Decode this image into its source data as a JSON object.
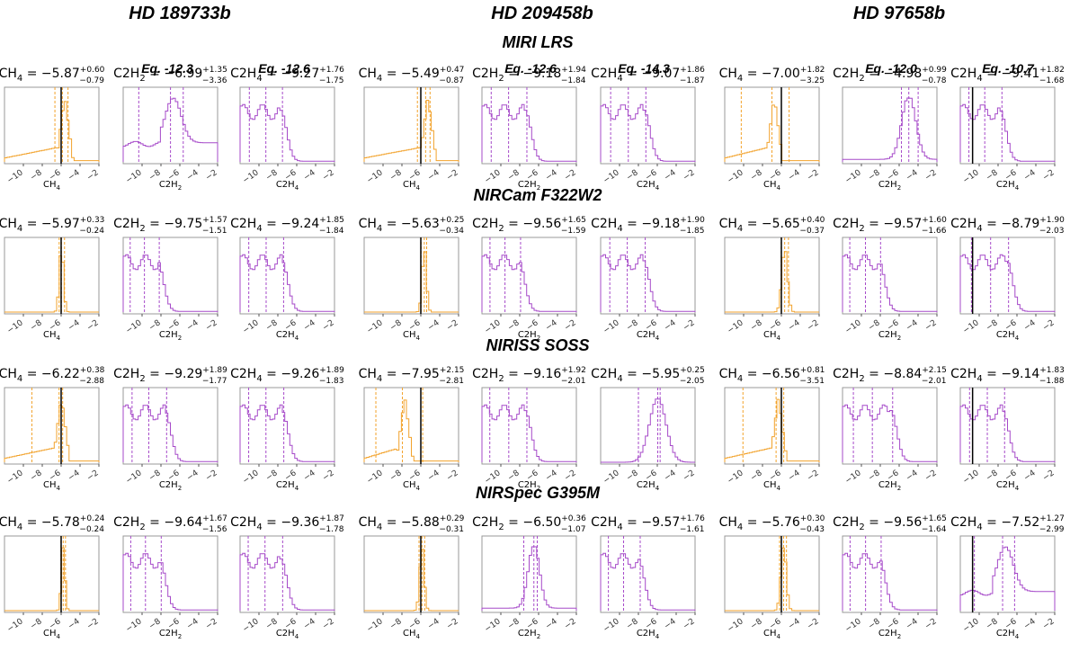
{
  "header": {
    "planets": [
      "HD 189733b",
      "HD 209458b",
      "HD 97658b"
    ],
    "equilibrium": [
      "Eq. -12.3",
      "Eq. -12.6",
      "Eq. -12.6",
      "Eq. -14.3",
      "Eq. -12.0",
      "Eq. -10.7"
    ]
  },
  "colors": {
    "ch4": "#f2a22b",
    "c2": "#a64ac9",
    "truth": "#000000",
    "frame": "#999999"
  },
  "chart_data": {
    "type": "histogram-grid",
    "xlim": [
      -12,
      -2
    ],
    "xticks": [
      -10,
      -8,
      -6,
      -4,
      -2
    ],
    "rows": [
      {
        "instrument": "MIRI LRS",
        "panels": [
          {
            "mol": "CH4",
            "sub": "4",
            "label": "CH",
            "xlabel": "CH4",
            "median": "−5.87",
            "plus": "+0.60",
            "minus": "−0.79",
            "truth": -6.0,
            "color": "ch4",
            "shape": "cliff",
            "p16": -6.66,
            "p50": -5.87,
            "p84": -5.27
          },
          {
            "mol": "C2H2",
            "sub": "2",
            "label": "C2H",
            "xlabel": "C2H2",
            "median": "−6.99",
            "plus": "+1.35",
            "minus": "−3.36",
            "truth": null,
            "color": "c2",
            "shape": "bump",
            "p16": -10.35,
            "p50": -6.99,
            "p84": -5.64
          },
          {
            "mol": "C2H4",
            "sub": "4",
            "label": "C2H",
            "xlabel": "C2H4",
            "median": "−9.27",
            "plus": "+1.76",
            "minus": "−1.75",
            "truth": null,
            "color": "c2",
            "shape": "plateau",
            "p16": -11.02,
            "p50": -9.27,
            "p84": -7.51
          },
          {
            "mol": "CH4",
            "sub": "4",
            "label": "CH",
            "xlabel": "CH4",
            "median": "−5.49",
            "plus": "+0.47",
            "minus": "−0.87",
            "truth": -6.0,
            "color": "ch4",
            "shape": "cliff",
            "p16": -6.36,
            "p50": -5.49,
            "p84": -5.02
          },
          {
            "mol": "C2H2",
            "sub": "2",
            "label": "C2H",
            "xlabel": "C2H2",
            "median": "−9.18",
            "plus": "+1.94",
            "minus": "−1.84",
            "truth": null,
            "color": "c2",
            "shape": "plateau",
            "p16": -11.02,
            "p50": -9.18,
            "p84": -7.24
          },
          {
            "mol": "C2H4",
            "sub": "4",
            "label": "C2H",
            "xlabel": "C2H4",
            "median": "−9.07",
            "plus": "+1.86",
            "minus": "−1.87",
            "truth": null,
            "color": "c2",
            "shape": "plateau",
            "p16": -10.94,
            "p50": -9.07,
            "p84": -7.21
          },
          {
            "mol": "CH4",
            "sub": "4",
            "label": "CH",
            "xlabel": "CH4",
            "median": "−7.00",
            "plus": "+1.82",
            "minus": "−3.25",
            "truth": -6.0,
            "color": "ch4",
            "shape": "cliff",
            "p16": -10.25,
            "p50": -7.0,
            "p84": -5.18
          },
          {
            "mol": "C2H2",
            "sub": "2",
            "label": "C2H",
            "xlabel": "C2H2",
            "median": "−4.98",
            "plus": "+0.99",
            "minus": "−0.78",
            "truth": null,
            "color": "c2",
            "shape": "peak",
            "p16": -5.76,
            "p50": -4.98,
            "p84": -3.99
          },
          {
            "mol": "C2H4",
            "sub": "4",
            "label": "C2H",
            "xlabel": "C2H4",
            "median": "−9.41",
            "plus": "+1.82",
            "minus": "−1.68",
            "truth": -10.7,
            "color": "c2",
            "shape": "plateau",
            "p16": -11.09,
            "p50": -9.41,
            "p84": -7.59
          }
        ]
      },
      {
        "instrument": "NIRCam F322W2",
        "panels": [
          {
            "mol": "CH4",
            "sub": "4",
            "label": "CH",
            "xlabel": "CH4",
            "median": "−5.97",
            "plus": "+0.33",
            "minus": "−0.24",
            "truth": -6.0,
            "color": "ch4",
            "shape": "spike",
            "p16": -6.21,
            "p50": -5.97,
            "p84": -5.64
          },
          {
            "mol": "C2H2",
            "sub": "2",
            "label": "C2H",
            "xlabel": "C2H2",
            "median": "−9.75",
            "plus": "+1.57",
            "minus": "−1.51",
            "truth": null,
            "color": "c2",
            "shape": "plateau",
            "p16": -11.26,
            "p50": -9.75,
            "p84": -8.18
          },
          {
            "mol": "C2H4",
            "sub": "4",
            "label": "C2H",
            "xlabel": "C2H4",
            "median": "−9.24",
            "plus": "+1.85",
            "minus": "−1.84",
            "truth": null,
            "color": "c2",
            "shape": "plateau",
            "p16": -11.08,
            "p50": -9.24,
            "p84": -7.39
          },
          {
            "mol": "CH4",
            "sub": "4",
            "label": "CH",
            "xlabel": "CH4",
            "median": "−5.63",
            "plus": "+0.25",
            "minus": "−0.34",
            "truth": -6.0,
            "color": "ch4",
            "shape": "spike",
            "p16": -5.97,
            "p50": -5.63,
            "p84": -5.38
          },
          {
            "mol": "C2H2",
            "sub": "2",
            "label": "C2H",
            "xlabel": "C2H2",
            "median": "−9.56",
            "plus": "+1.65",
            "minus": "−1.59",
            "truth": null,
            "color": "c2",
            "shape": "plateau",
            "p16": -11.15,
            "p50": -9.56,
            "p84": -7.91
          },
          {
            "mol": "C2H4",
            "sub": "4",
            "label": "C2H",
            "xlabel": "C2H4",
            "median": "−9.18",
            "plus": "+1.90",
            "minus": "−1.85",
            "truth": null,
            "color": "c2",
            "shape": "plateau",
            "p16": -11.03,
            "p50": -9.18,
            "p84": -7.28
          },
          {
            "mol": "CH4",
            "sub": "4",
            "label": "CH",
            "xlabel": "CH4",
            "median": "−5.65",
            "plus": "+0.40",
            "minus": "−0.37",
            "truth": -6.0,
            "color": "ch4",
            "shape": "spike",
            "p16": -6.02,
            "p50": -5.65,
            "p84": -5.25
          },
          {
            "mol": "C2H2",
            "sub": "2",
            "label": "C2H",
            "xlabel": "C2H2",
            "median": "−9.57",
            "plus": "+1.60",
            "minus": "−1.66",
            "truth": null,
            "color": "c2",
            "shape": "plateau",
            "p16": -11.23,
            "p50": -9.57,
            "p84": -7.97
          },
          {
            "mol": "C2H4",
            "sub": "4",
            "label": "C2H",
            "xlabel": "C2H4",
            "median": "−8.79",
            "plus": "+1.90",
            "minus": "−2.03",
            "truth": -10.7,
            "color": "c2",
            "shape": "plateau",
            "p16": -10.82,
            "p50": -8.79,
            "p84": -6.89
          }
        ]
      },
      {
        "instrument": "NIRISS SOSS",
        "panels": [
          {
            "mol": "CH4",
            "sub": "4",
            "label": "CH",
            "xlabel": "CH4",
            "median": "−6.22",
            "plus": "+0.38",
            "minus": "−2.88",
            "truth": -6.0,
            "color": "ch4",
            "shape": "cliff",
            "p16": -9.1,
            "p50": -6.22,
            "p84": -5.84
          },
          {
            "mol": "C2H2",
            "sub": "2",
            "label": "C2H",
            "xlabel": "C2H2",
            "median": "−9.29",
            "plus": "+1.89",
            "minus": "−1.77",
            "truth": null,
            "color": "c2",
            "shape": "plateau",
            "p16": -11.06,
            "p50": -9.29,
            "p84": -7.4
          },
          {
            "mol": "C2H4",
            "sub": "4",
            "label": "C2H",
            "xlabel": "C2H4",
            "median": "−9.26",
            "plus": "+1.89",
            "minus": "−1.83",
            "truth": null,
            "color": "c2",
            "shape": "plateau",
            "p16": -11.09,
            "p50": -9.26,
            "p84": -7.37
          },
          {
            "mol": "CH4",
            "sub": "4",
            "label": "CH",
            "xlabel": "CH4",
            "median": "−7.95",
            "plus": "+2.15",
            "minus": "−2.81",
            "truth": -6.0,
            "color": "ch4",
            "shape": "cliff",
            "p16": -10.76,
            "p50": -7.95,
            "p84": -5.8
          },
          {
            "mol": "C2H2",
            "sub": "2",
            "label": "C2H",
            "xlabel": "C2H2",
            "median": "−9.16",
            "plus": "+1.92",
            "minus": "−2.01",
            "truth": null,
            "color": "c2",
            "shape": "plateau",
            "p16": -11.17,
            "p50": -9.16,
            "p84": -7.24
          },
          {
            "mol": "C2H4",
            "sub": "4",
            "label": "C2H",
            "xlabel": "C2H4",
            "median": "−5.95",
            "plus": "+0.25",
            "minus": "−2.05",
            "truth": null,
            "color": "c2",
            "shape": "spike",
            "p16": -8.0,
            "p50": -5.95,
            "p84": -5.7
          },
          {
            "mol": "CH4",
            "sub": "4",
            "label": "CH",
            "xlabel": "CH4",
            "median": "−6.56",
            "plus": "+0.81",
            "minus": "−3.51",
            "truth": -6.0,
            "color": "ch4",
            "shape": "cliff",
            "p16": -10.07,
            "p50": -6.56,
            "p84": -5.75
          },
          {
            "mol": "C2H2",
            "sub": "2",
            "label": "C2H",
            "xlabel": "C2H2",
            "median": "−8.84",
            "plus": "+2.15",
            "minus": "−2.01",
            "truth": null,
            "color": "c2",
            "shape": "plateau",
            "p16": -10.85,
            "p50": -8.84,
            "p84": -6.69
          },
          {
            "mol": "C2H4",
            "sub": "4",
            "label": "C2H",
            "xlabel": "C2H4",
            "median": "−9.14",
            "plus": "+1.83",
            "minus": "−1.88",
            "truth": -10.7,
            "color": "c2",
            "shape": "plateau",
            "p16": -11.02,
            "p50": -9.14,
            "p84": -7.31
          }
        ]
      },
      {
        "instrument": "NIRSpec G395M",
        "panels": [
          {
            "mol": "CH4",
            "sub": "4",
            "label": "CH",
            "xlabel": "CH4",
            "median": "−5.78",
            "plus": "+0.24",
            "minus": "−0.24",
            "truth": -6.0,
            "color": "ch4",
            "shape": "spike",
            "p16": -6.02,
            "p50": -5.78,
            "p84": -5.54
          },
          {
            "mol": "C2H2",
            "sub": "2",
            "label": "C2H",
            "xlabel": "C2H2",
            "median": "−9.64",
            "plus": "+1.67",
            "minus": "−1.56",
            "truth": null,
            "color": "c2",
            "shape": "plateau",
            "p16": -11.2,
            "p50": -9.64,
            "p84": -7.97
          },
          {
            "mol": "C2H4",
            "sub": "4",
            "label": "C2H",
            "xlabel": "C2H4",
            "median": "−9.36",
            "plus": "+1.87",
            "minus": "−1.78",
            "truth": null,
            "color": "c2",
            "shape": "plateau",
            "p16": -11.14,
            "p50": -9.36,
            "p84": -7.49
          },
          {
            "mol": "CH4",
            "sub": "4",
            "label": "CH",
            "xlabel": "CH4",
            "median": "−5.88",
            "plus": "+0.29",
            "minus": "−0.31",
            "truth": -6.0,
            "color": "ch4",
            "shape": "spike",
            "p16": -6.19,
            "p50": -5.88,
            "p84": -5.59
          },
          {
            "mol": "C2H2",
            "sub": "2",
            "label": "C2H",
            "xlabel": "C2H2",
            "median": "−6.50",
            "plus": "+0.36",
            "minus": "−1.07",
            "truth": null,
            "color": "c2",
            "shape": "peak",
            "p16": -7.57,
            "p50": -6.5,
            "p84": -6.14
          },
          {
            "mol": "C2H4",
            "sub": "4",
            "label": "C2H",
            "xlabel": "C2H4",
            "median": "−9.57",
            "plus": "+1.76",
            "minus": "−1.61",
            "truth": null,
            "color": "c2",
            "shape": "plateau",
            "p16": -11.18,
            "p50": -9.57,
            "p84": -7.81
          },
          {
            "mol": "CH4",
            "sub": "4",
            "label": "CH",
            "xlabel": "CH4",
            "median": "−5.76",
            "plus": "+0.30",
            "minus": "−0.43",
            "truth": -6.0,
            "color": "ch4",
            "shape": "spike",
            "p16": -6.19,
            "p50": -5.76,
            "p84": -5.46
          },
          {
            "mol": "C2H2",
            "sub": "2",
            "label": "C2H",
            "xlabel": "C2H2",
            "median": "−9.56",
            "plus": "+1.65",
            "minus": "−1.64",
            "truth": null,
            "color": "c2",
            "shape": "plateau",
            "p16": -11.2,
            "p50": -9.56,
            "p84": -7.91
          },
          {
            "mol": "C2H4",
            "sub": "4",
            "label": "C2H",
            "xlabel": "C2H4",
            "median": "−7.52",
            "plus": "+1.27",
            "minus": "−2.99",
            "truth": -10.7,
            "color": "c2",
            "shape": "bump",
            "p16": -10.51,
            "p50": -7.52,
            "p84": -6.25
          }
        ]
      }
    ]
  }
}
